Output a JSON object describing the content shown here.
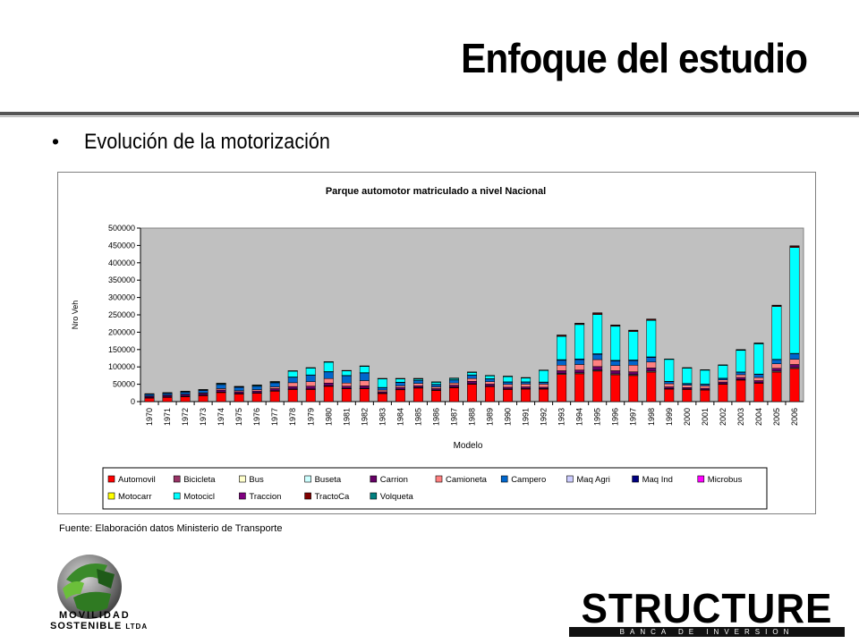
{
  "slide": {
    "title": "Enfoque del estudio",
    "bullet": "Evolución de la motorización",
    "source": "Fuente: Elaboración datos Ministerio de Transporte",
    "logo_left_line1": "MOVILIDAD",
    "logo_left_line2": "SOSTENIBLE",
    "logo_left_suffix": "LTDA",
    "logo_right_word": "STRUCTURE",
    "logo_right_sub": "BANCA DE INVERSION"
  },
  "chart_data": {
    "type": "bar",
    "stacked": true,
    "title": "Parque automotor matriculado a nivel Nacional",
    "xlabel": "Modelo",
    "ylabel": "Nro Veh",
    "ylim": [
      0,
      500000
    ],
    "yticks": [
      0,
      50000,
      100000,
      150000,
      200000,
      250000,
      300000,
      350000,
      400000,
      450000,
      500000
    ],
    "grid": false,
    "legend_position": "bottom",
    "categories": [
      "1970",
      "1971",
      "1972",
      "1973",
      "1974",
      "1975",
      "1976",
      "1977",
      "1978",
      "1979",
      "1980",
      "1981",
      "1982",
      "1983",
      "1984",
      "1985",
      "1986",
      "1987",
      "1988",
      "1989",
      "1990",
      "1991",
      "1992",
      "1993",
      "1994",
      "1995",
      "1996",
      "1997",
      "1998",
      "1999",
      "2000",
      "2001",
      "2002",
      "2003",
      "2004",
      "2005",
      "2006"
    ],
    "series": [
      {
        "name": "Automovil",
        "color": "#ff0000",
        "values": [
          10000,
          12000,
          14000,
          17000,
          26000,
          22000,
          24000,
          30000,
          35000,
          35000,
          44000,
          37000,
          37000,
          23000,
          34000,
          39000,
          32000,
          40000,
          50000,
          43000,
          35000,
          36000,
          36000,
          78000,
          80000,
          88000,
          77000,
          75000,
          85000,
          36000,
          35000,
          33000,
          50000,
          62000,
          53000,
          85000,
          95000
        ]
      },
      {
        "name": "Bicicleta",
        "color": "#993366",
        "values": [
          0,
          0,
          0,
          0,
          0,
          0,
          0,
          0,
          0,
          0,
          0,
          0,
          0,
          0,
          0,
          0,
          0,
          0,
          0,
          0,
          0,
          0,
          0,
          0,
          0,
          0,
          0,
          0,
          0,
          0,
          0,
          0,
          0,
          0,
          0,
          0,
          0
        ]
      },
      {
        "name": "Bus",
        "color": "#ffffcc",
        "values": [
          1000,
          1000,
          1000,
          1000,
          1000,
          1000,
          1000,
          1000,
          1000,
          1000,
          1000,
          1000,
          1000,
          1000,
          1000,
          1000,
          1000,
          1000,
          1000,
          1000,
          1000,
          1000,
          1000,
          2000,
          2000,
          2000,
          2000,
          2000,
          2000,
          1000,
          1000,
          1000,
          1000,
          1000,
          1000,
          2000,
          2000
        ]
      },
      {
        "name": "Buseta",
        "color": "#ccffff",
        "values": [
          500,
          500,
          500,
          500,
          500,
          500,
          500,
          500,
          500,
          500,
          500,
          500,
          500,
          500,
          500,
          500,
          500,
          500,
          500,
          500,
          500,
          500,
          500,
          1000,
          1000,
          1000,
          1000,
          1000,
          1000,
          500,
          500,
          500,
          500,
          500,
          500,
          1000,
          1000
        ]
      },
      {
        "name": "Carrion",
        "color": "#660066",
        "values": [
          4000,
          4500,
          5000,
          5000,
          6000,
          5000,
          5000,
          6000,
          7000,
          8000,
          8000,
          6000,
          7000,
          4000,
          5000,
          5000,
          4000,
          6000,
          7000,
          6000,
          5000,
          5000,
          4000,
          8000,
          8000,
          10000,
          9000,
          8000,
          9000,
          5000,
          4000,
          4000,
          5000,
          6000,
          6000,
          8000,
          9000
        ]
      },
      {
        "name": "Camioneta",
        "color": "#ff8080",
        "values": [
          1000,
          1000,
          1000,
          2000,
          4000,
          3000,
          4000,
          5000,
          11000,
          13000,
          13000,
          9000,
          15000,
          5000,
          5000,
          7000,
          5000,
          6000,
          8000,
          7000,
          8000,
          8000,
          9000,
          16000,
          16000,
          20000,
          15000,
          19000,
          17000,
          9000,
          7000,
          7000,
          6000,
          8000,
          9000,
          13000,
          15000
        ]
      },
      {
        "name": "Campero",
        "color": "#0066cc",
        "values": [
          5000,
          5000,
          6000,
          7000,
          12000,
          10000,
          10000,
          12000,
          16000,
          19000,
          19000,
          21000,
          22000,
          7000,
          10000,
          9000,
          7000,
          9000,
          10000,
          8000,
          7000,
          6000,
          5000,
          14000,
          14000,
          15000,
          13000,
          13000,
          13000,
          6000,
          4000,
          4000,
          4000,
          7000,
          9000,
          12000,
          16000
        ]
      },
      {
        "name": "Maq Agri",
        "color": "#ccccff",
        "values": [
          0,
          0,
          0,
          0,
          0,
          0,
          0,
          0,
          0,
          0,
          0,
          0,
          0,
          0,
          0,
          0,
          0,
          0,
          0,
          0,
          0,
          0,
          0,
          0,
          0,
          0,
          0,
          0,
          0,
          0,
          0,
          0,
          0,
          0,
          0,
          0,
          0
        ]
      },
      {
        "name": "Maq Ind",
        "color": "#000080",
        "values": [
          500,
          500,
          500,
          500,
          500,
          500,
          500,
          500,
          500,
          500,
          1000,
          1000,
          1000,
          500,
          500,
          500,
          500,
          500,
          500,
          500,
          500,
          500,
          1000,
          2000,
          2000,
          2000,
          2000,
          2000,
          2000,
          1000,
          1000,
          1000,
          1000,
          1000,
          1000,
          1000,
          1000
        ]
      },
      {
        "name": "Microbus",
        "color": "#ff00ff",
        "values": [
          0,
          0,
          0,
          0,
          0,
          0,
          0,
          0,
          0,
          0,
          0,
          0,
          0,
          0,
          0,
          0,
          0,
          0,
          0,
          0,
          0,
          0,
          0,
          0,
          0,
          0,
          0,
          0,
          0,
          0,
          0,
          0,
          0,
          0,
          0,
          0,
          0
        ]
      },
      {
        "name": "Motocarr",
        "color": "#ffff00",
        "values": [
          0,
          0,
          0,
          0,
          0,
          0,
          0,
          0,
          0,
          0,
          0,
          0,
          0,
          0,
          0,
          0,
          0,
          0,
          0,
          0,
          0,
          0,
          0,
          0,
          0,
          0,
          0,
          0,
          0,
          0,
          0,
          0,
          0,
          0,
          0,
          0,
          0
        ]
      },
      {
        "name": "Motocicl",
        "color": "#00ffff",
        "values": [
          0,
          500,
          1000,
          1000,
          2000,
          1000,
          2000,
          2000,
          17000,
          20000,
          27000,
          13000,
          18000,
          25000,
          10000,
          4000,
          6000,
          4000,
          7000,
          8000,
          15000,
          11000,
          33000,
          67000,
          99000,
          113000,
          98000,
          82000,
          105000,
          63000,
          44000,
          40000,
          37000,
          62000,
          87000,
          152000,
          305000
        ]
      },
      {
        "name": "Traccion",
        "color": "#800080",
        "values": [
          0,
          0,
          0,
          0,
          0,
          0,
          0,
          0,
          0,
          0,
          0,
          0,
          0,
          0,
          0,
          0,
          0,
          0,
          0,
          0,
          0,
          0,
          0,
          0,
          0,
          0,
          0,
          0,
          0,
          0,
          0,
          0,
          0,
          0,
          0,
          0,
          0
        ]
      },
      {
        "name": "TractoCa",
        "color": "#800000",
        "values": [
          500,
          500,
          500,
          500,
          500,
          500,
          500,
          500,
          500,
          500,
          1000,
          1000,
          1000,
          500,
          500,
          500,
          500,
          500,
          1000,
          1000,
          1000,
          1000,
          1000,
          3000,
          3000,
          4000,
          3000,
          3000,
          3000,
          1000,
          1000,
          1000,
          1000,
          2000,
          2000,
          3000,
          4000
        ]
      },
      {
        "name": "Volqueta",
        "color": "#008080",
        "values": [
          500,
          500,
          500,
          500,
          500,
          500,
          500,
          500,
          500,
          500,
          500,
          500,
          500,
          500,
          500,
          500,
          500,
          500,
          500,
          500,
          500,
          500,
          500,
          1000,
          1000,
          1000,
          1000,
          1000,
          1000,
          500,
          500,
          500,
          500,
          500,
          500,
          1000,
          1000
        ]
      }
    ]
  },
  "colors": {
    "plot_background": "#c0c0c0",
    "rule": "#555555"
  }
}
